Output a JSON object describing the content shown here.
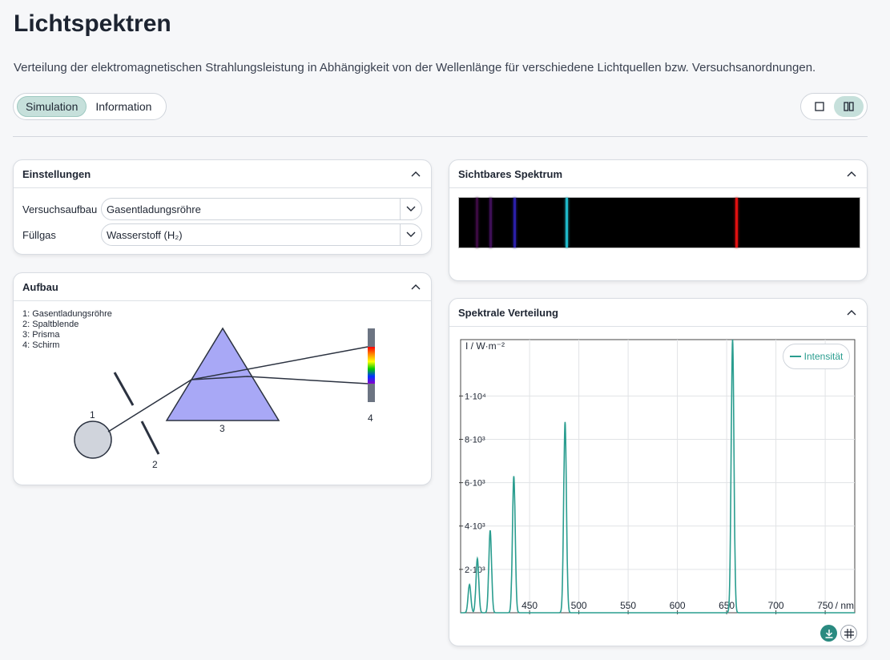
{
  "page": {
    "title": "Lichtspektren",
    "description": "Verteilung der elektromagnetischen Strahlungsleistung in Abhängigkeit von der Wellenlänge für verschiedene Lichtquellen bzw. Versuchsanordnungen."
  },
  "tabs": [
    {
      "label": "Simulation",
      "active": true
    },
    {
      "label": "Information",
      "active": false
    }
  ],
  "layout_toggle": {
    "single_icon": "square-icon",
    "split_icon": "columns-icon",
    "active": "split"
  },
  "settings": {
    "title": "Einstellungen",
    "setup_label": "Versuchsaufbau",
    "setup_value": "Gasentladungsröhre",
    "gas_label": "Füllgas",
    "gas_value": "Wasserstoff (H₂)"
  },
  "setup_panel": {
    "title": "Aufbau",
    "legend": [
      "1: Gasentladungsröhre",
      "2: Spaltblende",
      "3: Prisma",
      "4: Schirm"
    ],
    "labels": [
      "1",
      "2",
      "3",
      "4"
    ]
  },
  "visible_spectrum": {
    "title": "Sichtbares Spektrum",
    "lines": [
      {
        "wavelength_nm": 397,
        "color": "#3a0a40"
      },
      {
        "wavelength_nm": 410,
        "color": "#3d0f55"
      },
      {
        "wavelength_nm": 434,
        "color": "#2a1fa8"
      },
      {
        "wavelength_nm": 486,
        "color": "#1fb8c8"
      },
      {
        "wavelength_nm": 656,
        "color": "#e01010"
      }
    ],
    "range_nm": [
      380,
      780
    ]
  },
  "spectral_chart": {
    "title": "Spektrale Verteilung",
    "legend_label": "Intensität",
    "line_color": "#2a9d8f",
    "download_icon": "download-icon",
    "grid_icon": "grid-icon"
  },
  "chart_data": {
    "type": "line",
    "title": "",
    "xlabel": "/ nm",
    "ylabel": "I / W·m⁻²",
    "xlim": [
      380,
      780
    ],
    "ylim": [
      0,
      12600
    ],
    "x_ticks": [
      "450",
      "500",
      "550",
      "600",
      "650",
      "700",
      "750"
    ],
    "y_ticks": [
      "2·10³",
      "4·10³",
      "6·10³",
      "8·10³",
      "1·10⁴"
    ],
    "grid": true,
    "legend": "top-right",
    "series": [
      {
        "name": "Intensität",
        "peaks": [
          {
            "x": 389,
            "y": 1300
          },
          {
            "x": 397,
            "y": 2500
          },
          {
            "x": 410,
            "y": 3800
          },
          {
            "x": 434,
            "y": 6300
          },
          {
            "x": 486,
            "y": 8800
          },
          {
            "x": 656,
            "y": 12600
          }
        ]
      }
    ]
  }
}
